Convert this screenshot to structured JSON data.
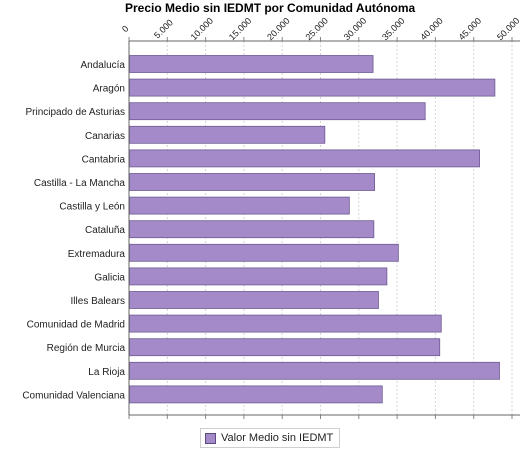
{
  "chart_data": {
    "type": "bar",
    "orientation": "horizontal",
    "title": "Precio Medio sin IEDMT por Comunidad Autónoma",
    "categories": [
      "Andalucía",
      "Aragón",
      "Principado de Asturias",
      "Canarias",
      "Cantabria",
      "Castilla - La Mancha",
      "Castilla y León",
      "Cataluña",
      "Extremadura",
      "Galicia",
      "Illes Balears",
      "Comunidad de Madrid",
      "Región de Murcia",
      "La Rioja",
      "Comunidad Valenciana"
    ],
    "series": [
      {
        "name": "Valor Medio sin IEDMT",
        "values": [
          31800,
          47700,
          38600,
          25500,
          45700,
          32000,
          28700,
          31900,
          35100,
          33600,
          32500,
          40700,
          40500,
          48300,
          33000
        ],
        "color": "#a58ac9"
      }
    ],
    "xlim": [
      0,
      50000
    ],
    "x_ticks": [
      "0",
      "5.000",
      "10.000",
      "15.000",
      "20.000",
      "25.000",
      "30.000",
      "35.000",
      "40.000",
      "45.000",
      "50.000"
    ],
    "x_tick_values": [
      0,
      5000,
      10000,
      15000,
      20000,
      25000,
      30000,
      35000,
      40000,
      45000,
      50000
    ],
    "x_axis_position": "top",
    "grid": true,
    "legend": "bottom-center"
  }
}
